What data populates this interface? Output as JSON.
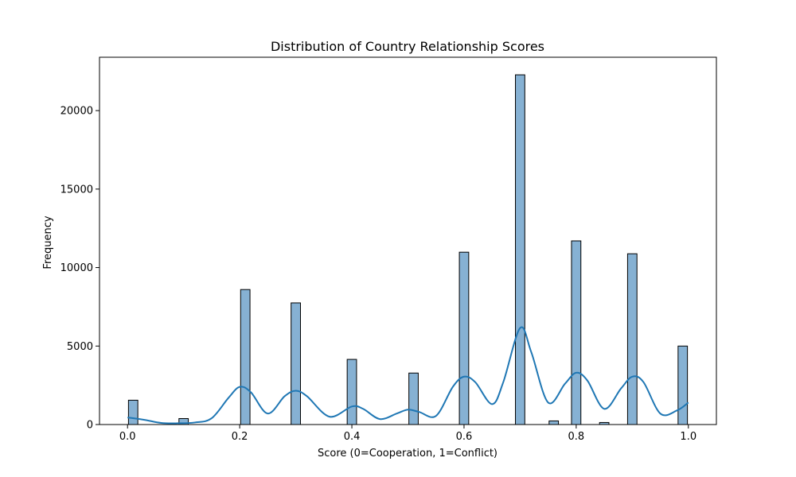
{
  "chart_data": {
    "type": "bar",
    "title": "Distribution of Country Relationship Scores",
    "xlabel": "Score (0=Cooperation, 1=Conflict)",
    "ylabel": "Frequency",
    "xlim": [
      -0.05,
      1.05
    ],
    "ylim": [
      0,
      23400
    ],
    "xticks": [
      0.0,
      0.2,
      0.4,
      0.6,
      0.8,
      1.0
    ],
    "xtick_labels": [
      "0.0",
      "0.2",
      "0.4",
      "0.6",
      "0.8",
      "1.0"
    ],
    "yticks": [
      0,
      5000,
      10000,
      15000,
      20000
    ],
    "ytick_labels": [
      "0",
      "5000",
      "10000",
      "15000",
      "20000"
    ],
    "bin_width": 0.0167,
    "bars": [
      {
        "x": 0.01,
        "value": 1550
      },
      {
        "x": 0.1,
        "value": 380
      },
      {
        "x": 0.21,
        "value": 8600
      },
      {
        "x": 0.3,
        "value": 7750
      },
      {
        "x": 0.4,
        "value": 4150
      },
      {
        "x": 0.51,
        "value": 3280
      },
      {
        "x": 0.6,
        "value": 10980
      },
      {
        "x": 0.7,
        "value": 22280
      },
      {
        "x": 0.76,
        "value": 230
      },
      {
        "x": 0.8,
        "value": 11700
      },
      {
        "x": 0.85,
        "value": 130
      },
      {
        "x": 0.9,
        "value": 10880
      },
      {
        "x": 0.99,
        "value": 5000
      }
    ],
    "kde": {
      "x": [
        0.0,
        0.03,
        0.06,
        0.09,
        0.12,
        0.15,
        0.18,
        0.2,
        0.22,
        0.25,
        0.28,
        0.3,
        0.32,
        0.36,
        0.4,
        0.42,
        0.45,
        0.48,
        0.5,
        0.52,
        0.55,
        0.58,
        0.6,
        0.62,
        0.65,
        0.67,
        0.7,
        0.72,
        0.75,
        0.78,
        0.8,
        0.82,
        0.85,
        0.88,
        0.9,
        0.92,
        0.95,
        0.98,
        1.0
      ],
      "y": [
        450,
        300,
        100,
        80,
        130,
        400,
        1700,
        2400,
        2050,
        700,
        1800,
        2150,
        1800,
        500,
        1150,
        1000,
        350,
        700,
        950,
        800,
        550,
        2400,
        3050,
        2700,
        1300,
        2700,
        6150,
        4600,
        1400,
        2600,
        3300,
        2800,
        1000,
        2300,
        3050,
        2700,
        700,
        900,
        1400
      ]
    },
    "bar_color": "#86b1d3",
    "bar_edge_color": "#000000",
    "kde_color": "#1f77b4",
    "grid": false,
    "legend": "none"
  }
}
